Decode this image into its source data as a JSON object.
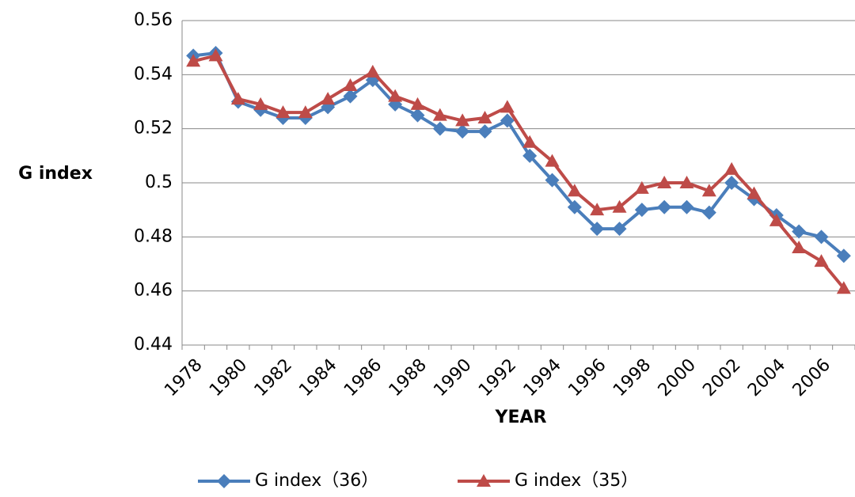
{
  "chart_data": {
    "type": "line",
    "x_label": "YEAR",
    "y_label": "G  index",
    "categories": [
      "1978",
      null,
      "1980",
      null,
      "1982",
      null,
      "1984",
      null,
      "1986",
      null,
      "1988",
      null,
      "1990",
      null,
      "1992",
      null,
      "1994",
      null,
      "1996",
      null,
      "1998",
      null,
      "2000",
      null,
      "2002",
      null,
      "2004",
      null,
      "2006",
      null
    ],
    "series": [
      {
        "name": "G  index（36）",
        "color": "#4a7ebb",
        "marker": "diamond",
        "values": [
          0.547,
          0.548,
          0.53,
          0.527,
          0.524,
          0.524,
          0.528,
          0.532,
          0.538,
          0.529,
          0.525,
          0.52,
          0.519,
          0.519,
          0.523,
          0.51,
          0.501,
          0.491,
          0.483,
          0.483,
          0.49,
          0.491,
          0.491,
          0.489,
          0.5,
          0.494,
          0.488,
          0.482,
          0.48,
          0.473
        ]
      },
      {
        "name": "G  index（35）",
        "color": "#be4b48",
        "marker": "triangle",
        "values": [
          0.545,
          0.547,
          0.531,
          0.529,
          0.526,
          0.526,
          0.531,
          0.536,
          0.541,
          0.532,
          0.529,
          0.525,
          0.523,
          0.524,
          0.528,
          0.515,
          0.508,
          0.497,
          0.49,
          0.491,
          0.498,
          0.5,
          0.5,
          0.497,
          0.505,
          0.496,
          0.486,
          0.476,
          0.471,
          0.461
        ]
      }
    ],
    "ylim": [
      0.44,
      0.56
    ],
    "yticks": [
      0.56,
      0.54,
      0.52,
      0.5,
      0.48,
      0.46,
      0.44
    ],
    "grid": true,
    "legend": "bottom"
  }
}
